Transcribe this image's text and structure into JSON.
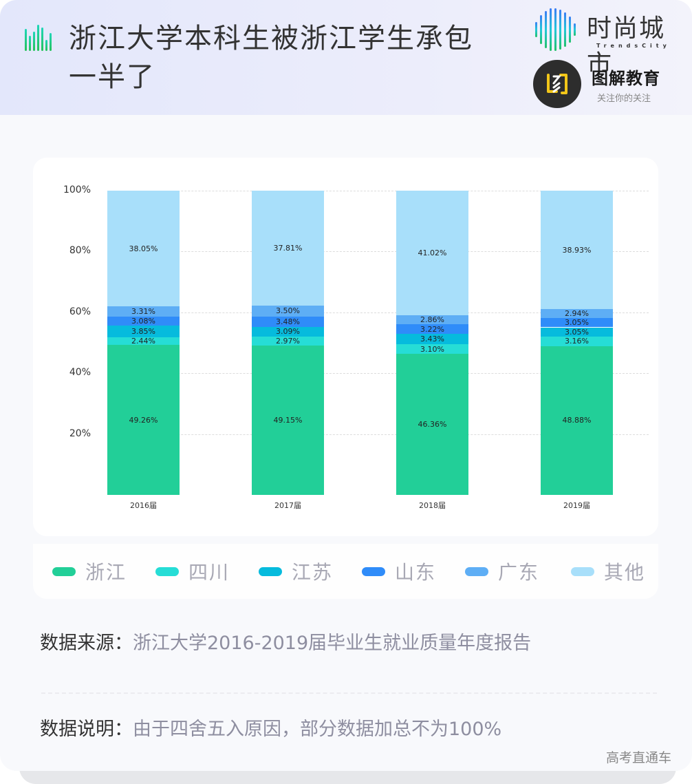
{
  "header": {
    "title": "浙江大学本科生被浙江学生承包一半了",
    "brand_primary": {
      "name": "时尚城市",
      "subtitle": "TrendsCity"
    },
    "brand_secondary": {
      "name": "图解教育",
      "slogan": "关注你的关注"
    }
  },
  "colors": {
    "浙江": "#22cf98",
    "四川": "#26ddd6",
    "江苏": "#06bbdd",
    "山东": "#2f8cf9",
    "广东": "#5eaef5",
    "其他": "#a8dffa"
  },
  "chart_data": {
    "type": "bar",
    "stacked": true,
    "title": "浙江大学本科生被浙江学生承包一半了",
    "categories": [
      "2016届",
      "2017届",
      "2018届",
      "2019届"
    ],
    "series": [
      {
        "name": "浙江",
        "color": "#22cf98",
        "values": [
          49.26,
          49.15,
          46.36,
          48.88
        ],
        "labels": [
          "49.26%",
          "49.15%",
          "46.36%",
          "48.88%"
        ]
      },
      {
        "name": "四川",
        "color": "#26ddd6",
        "values": [
          2.44,
          2.97,
          3.1,
          3.16
        ],
        "labels": [
          "2.44%",
          "2.97%",
          "3.10%",
          "3.16%"
        ]
      },
      {
        "name": "江苏",
        "color": "#06bbdd",
        "values": [
          3.85,
          3.09,
          3.43,
          3.05
        ],
        "labels": [
          "3.85%",
          "3.09%",
          "3.43%",
          "3.05%"
        ]
      },
      {
        "name": "山东",
        "color": "#2f8cf9",
        "values": [
          3.08,
          3.48,
          3.22,
          3.05
        ],
        "labels": [
          "3.08%",
          "3.48%",
          "3.22%",
          "3.05%"
        ]
      },
      {
        "name": "广东",
        "color": "#5eaef5",
        "values": [
          3.31,
          3.5,
          2.86,
          2.94
        ],
        "labels": [
          "3.31%",
          "3.50%",
          "2.86%",
          "2.94%"
        ]
      },
      {
        "name": "其他",
        "color": "#a8dffa",
        "values": [
          38.05,
          37.81,
          41.02,
          38.93
        ],
        "labels": [
          "38.05%",
          "37.81%",
          "41.02%",
          "38.93%"
        ]
      }
    ],
    "xlabel": "",
    "ylabel": "",
    "ylim": [
      0,
      100
    ],
    "yticks": [
      "20%",
      "40%",
      "60%",
      "80%",
      "100%"
    ],
    "grid": true,
    "legend_position": "bottom"
  },
  "legend": [
    "浙江",
    "四川",
    "江苏",
    "山东",
    "广东",
    "其他"
  ],
  "notes": {
    "source_key": "数据来源：",
    "source_value": "浙江大学2016-2019届毕业生就业质量年度报告",
    "desc_key": "数据说明：",
    "desc_value": "由于四舍五入原因，部分数据加总不为100%"
  },
  "footer": {
    "brand": "高考直通车"
  }
}
